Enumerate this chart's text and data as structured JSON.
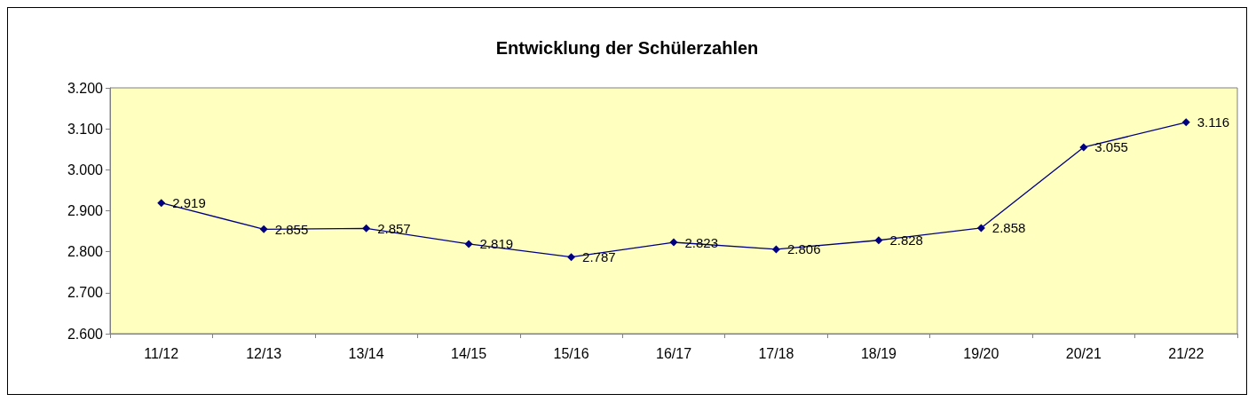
{
  "chart_data": {
    "type": "line",
    "title": "Entwicklung der Schülerzahlen",
    "categories": [
      "11/12",
      "12/13",
      "13/14",
      "14/15",
      "15/16",
      "16/17",
      "17/18",
      "18/19",
      "19/20",
      "20/21",
      "21/22"
    ],
    "values": [
      2919,
      2855,
      2857,
      2819,
      2787,
      2823,
      2806,
      2828,
      2858,
      3055,
      3116
    ],
    "value_labels": [
      "2.919",
      "2.855",
      "2.857",
      "2.819",
      "2.787",
      "2.823",
      "2.806",
      "2.828",
      "2.858",
      "3.055",
      "3.116"
    ],
    "color": "#000080",
    "marker": "diamond",
    "line_style": "solid",
    "ylim": [
      2600,
      3200
    ],
    "yticks": [
      {
        "value": 2600,
        "label": "2.600"
      },
      {
        "value": 2700,
        "label": "2.700"
      },
      {
        "value": 2800,
        "label": "2.800"
      },
      {
        "value": 2900,
        "label": "2.900"
      },
      {
        "value": 3000,
        "label": "3.000"
      },
      {
        "value": 3100,
        "label": "3.100"
      },
      {
        "value": 3200,
        "label": "3.200"
      }
    ]
  }
}
